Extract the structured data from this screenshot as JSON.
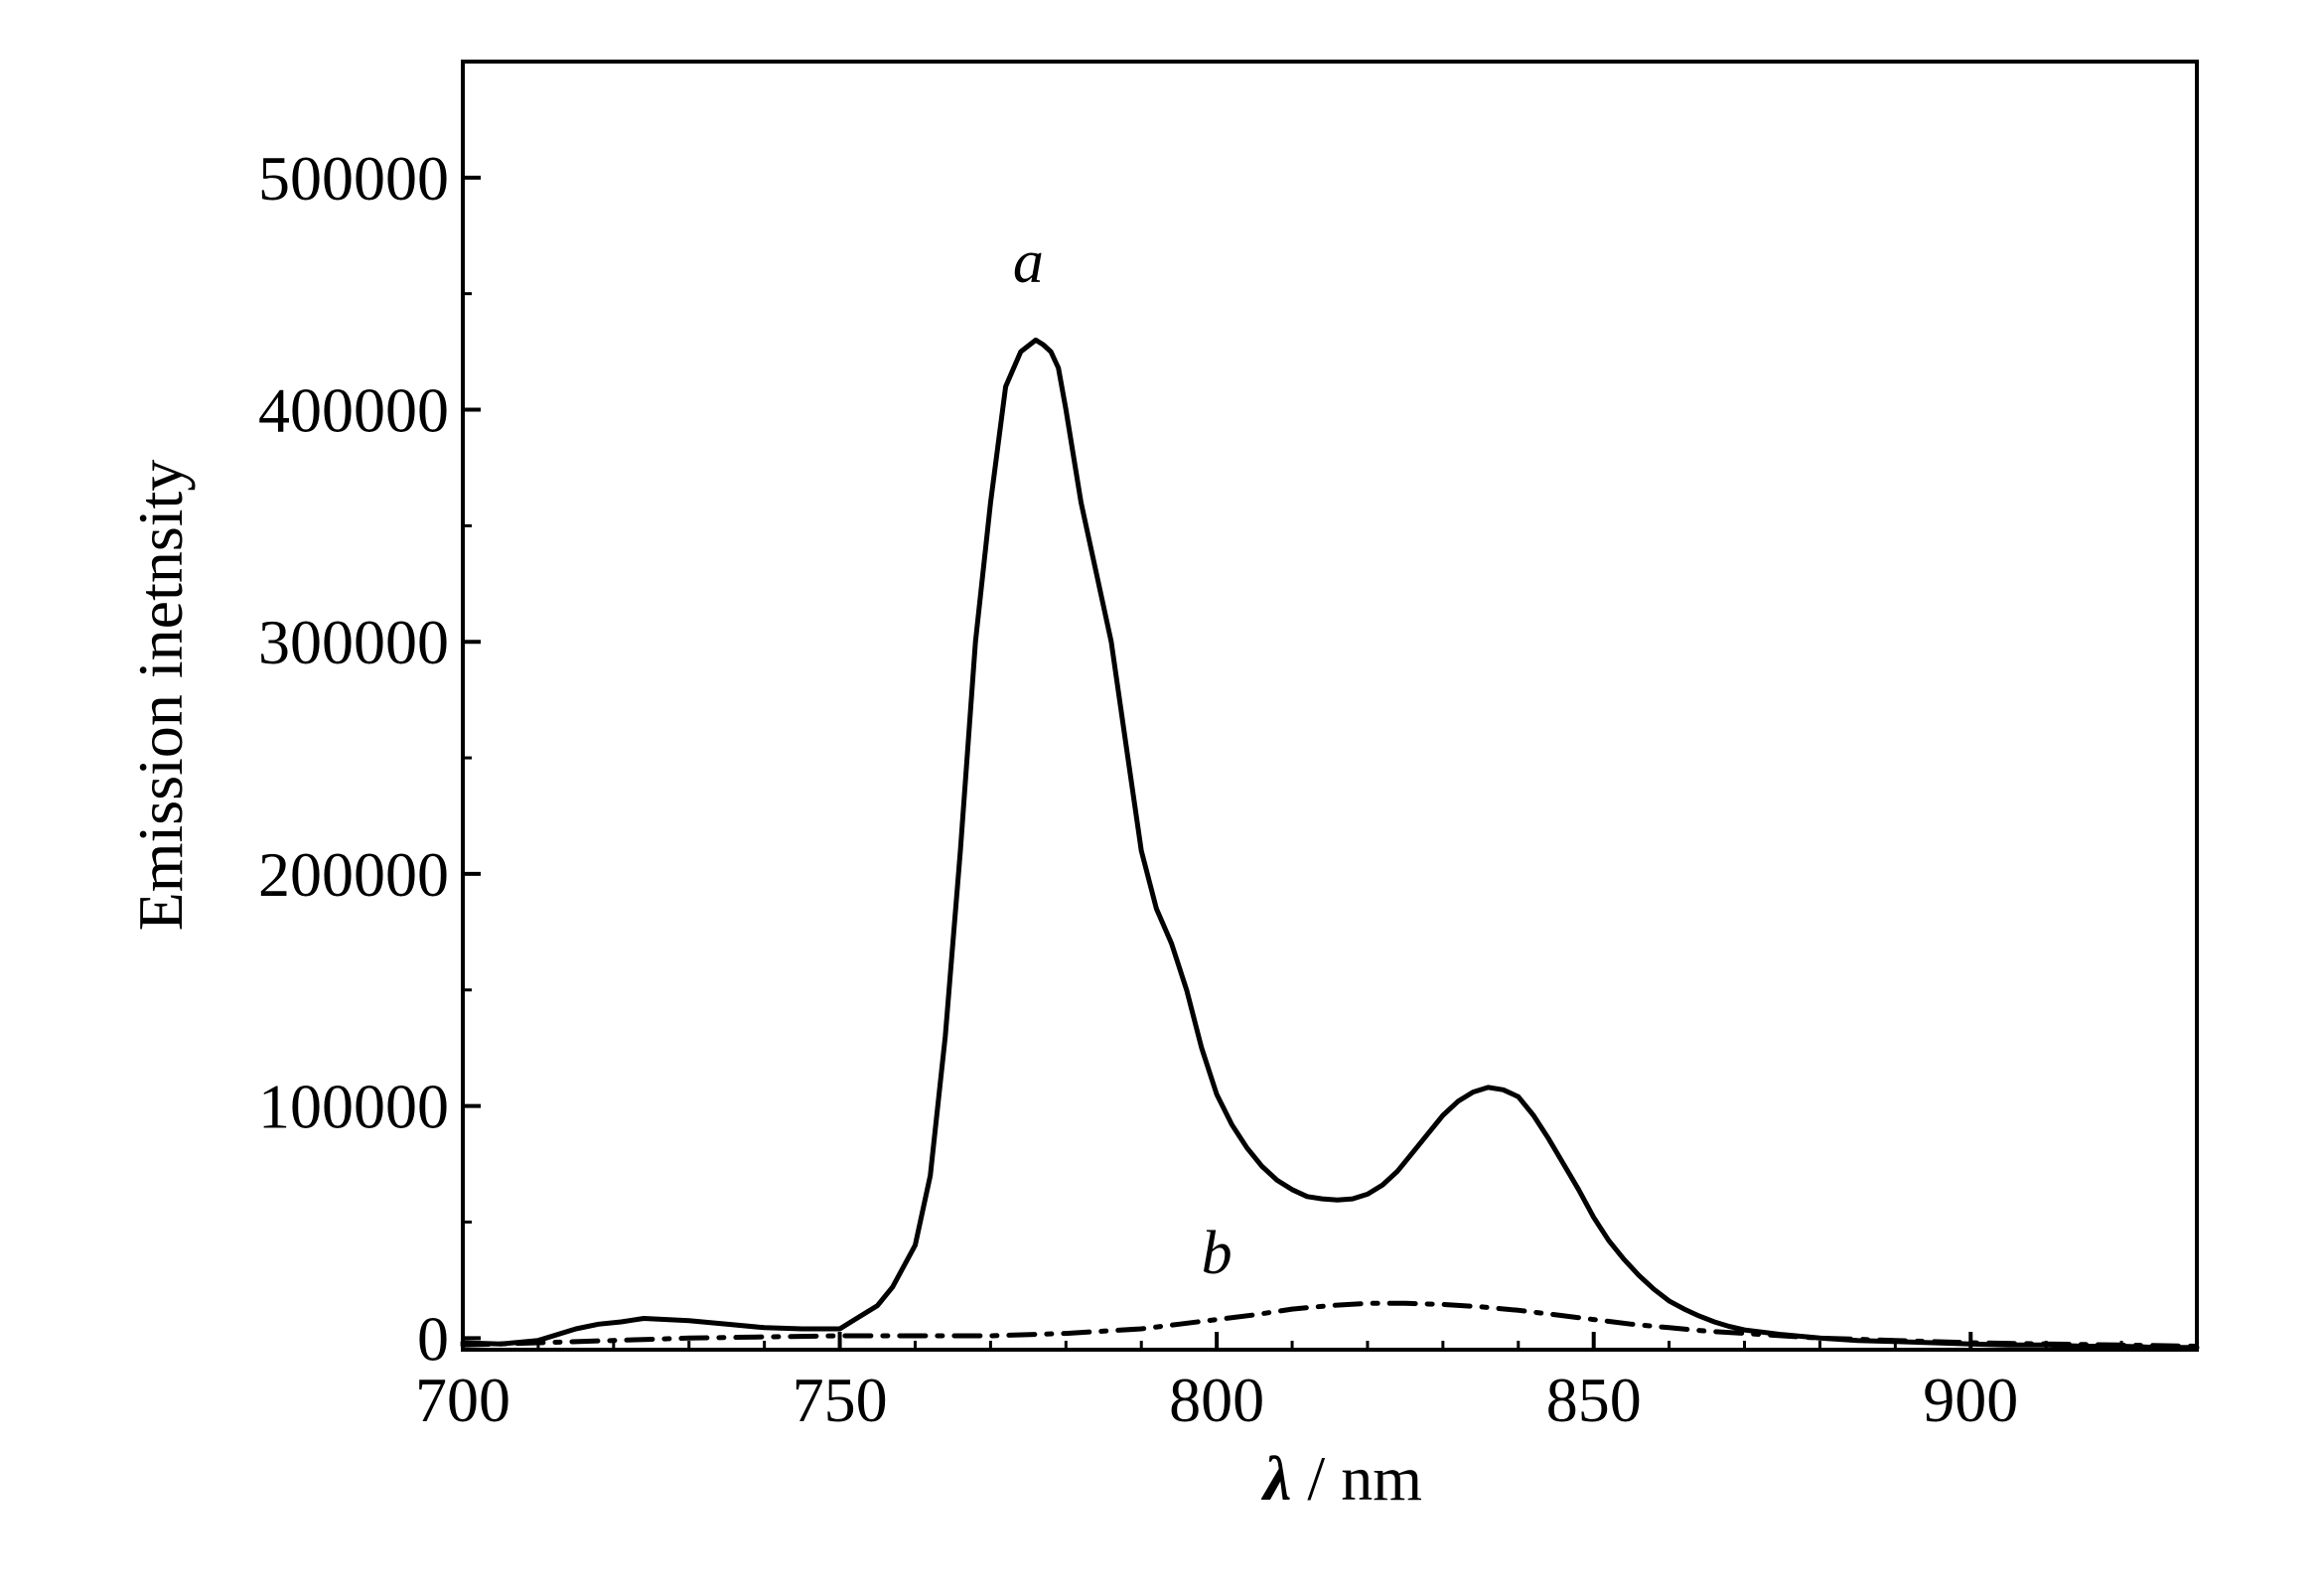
{
  "chart_data": {
    "type": "line",
    "xlabel_symbol": "λ",
    "xlabel_unit": " / nm",
    "ylabel": "Emission inetnsity",
    "xlim": [
      700,
      930
    ],
    "ylim": [
      -5000,
      550000
    ],
    "x_ticks": [
      700,
      750,
      800,
      850,
      900
    ],
    "y_ticks": [
      0,
      100000,
      200000,
      300000,
      400000,
      500000
    ],
    "x_tick_labels": [
      "700",
      "750",
      "800",
      "850",
      "900"
    ],
    "y_tick_labels": [
      "0",
      "100000",
      "200000",
      "300000",
      "400000",
      "500000"
    ],
    "x_minor_step": 10,
    "y_minor_step": 50000,
    "grid": false,
    "legend": "none",
    "series": [
      {
        "name": "a",
        "label_at": [
          775,
          455000
        ],
        "style": "solid",
        "color": "#000000",
        "x": [
          700,
          705,
          710,
          715,
          718,
          721,
          724,
          727,
          730,
          735,
          740,
          745,
          750,
          752,
          755,
          757,
          760,
          762,
          764,
          766,
          768,
          770,
          772,
          774,
          776,
          777,
          778,
          779,
          780,
          781,
          782,
          784,
          786,
          788,
          790,
          792,
          794,
          796,
          798,
          800,
          802,
          804,
          806,
          808,
          810,
          812,
          814,
          816,
          818,
          820,
          822,
          824,
          826,
          828,
          830,
          832,
          834,
          836,
          838,
          840,
          842,
          844,
          846,
          848,
          850,
          852,
          854,
          856,
          858,
          860,
          862,
          864,
          866,
          868,
          870,
          875,
          880,
          885,
          890,
          895,
          900,
          905,
          910,
          915,
          920,
          925,
          930
        ],
        "y": [
          -2000,
          -2500,
          -1000,
          4000,
          6000,
          7000,
          8500,
          8000,
          7500,
          6000,
          4500,
          4000,
          4000,
          8000,
          14000,
          22000,
          40000,
          70000,
          130000,
          210000,
          300000,
          360000,
          410000,
          425000,
          430000,
          428000,
          425000,
          418000,
          400000,
          380000,
          360000,
          330000,
          300000,
          255000,
          210000,
          185000,
          170000,
          150000,
          125000,
          105000,
          92000,
          82000,
          74000,
          68000,
          64000,
          61000,
          60000,
          59500,
          60000,
          62000,
          66000,
          72000,
          80000,
          88000,
          96000,
          102000,
          106000,
          108000,
          107000,
          104000,
          96000,
          86000,
          75000,
          64000,
          52000,
          42000,
          34000,
          27000,
          21000,
          16000,
          12500,
          9500,
          7000,
          5000,
          3500,
          1500,
          0,
          -1000,
          -1500,
          -2000,
          -2500,
          -3000,
          -3000,
          -3500,
          -3500,
          -4000,
          -4000
        ]
      },
      {
        "name": "b",
        "label_at": [
          800,
          28000
        ],
        "style": "dashdot",
        "color": "#000000",
        "x": [
          700,
          710,
          720,
          730,
          740,
          750,
          760,
          770,
          780,
          785,
          790,
          795,
          800,
          805,
          810,
          815,
          820,
          825,
          830,
          835,
          840,
          845,
          850,
          855,
          860,
          865,
          870,
          875,
          880,
          890,
          900,
          910,
          920,
          930
        ],
        "y": [
          -3000,
          -2000,
          -1000,
          0,
          500,
          1000,
          1000,
          1000,
          2000,
          3000,
          4000,
          6000,
          8000,
          10000,
          12500,
          14000,
          15000,
          15000,
          14500,
          13500,
          12000,
          10000,
          8000,
          6000,
          4500,
          3000,
          2000,
          1000,
          0,
          -1000,
          -2000,
          -2500,
          -3000,
          -3500
        ]
      }
    ]
  }
}
